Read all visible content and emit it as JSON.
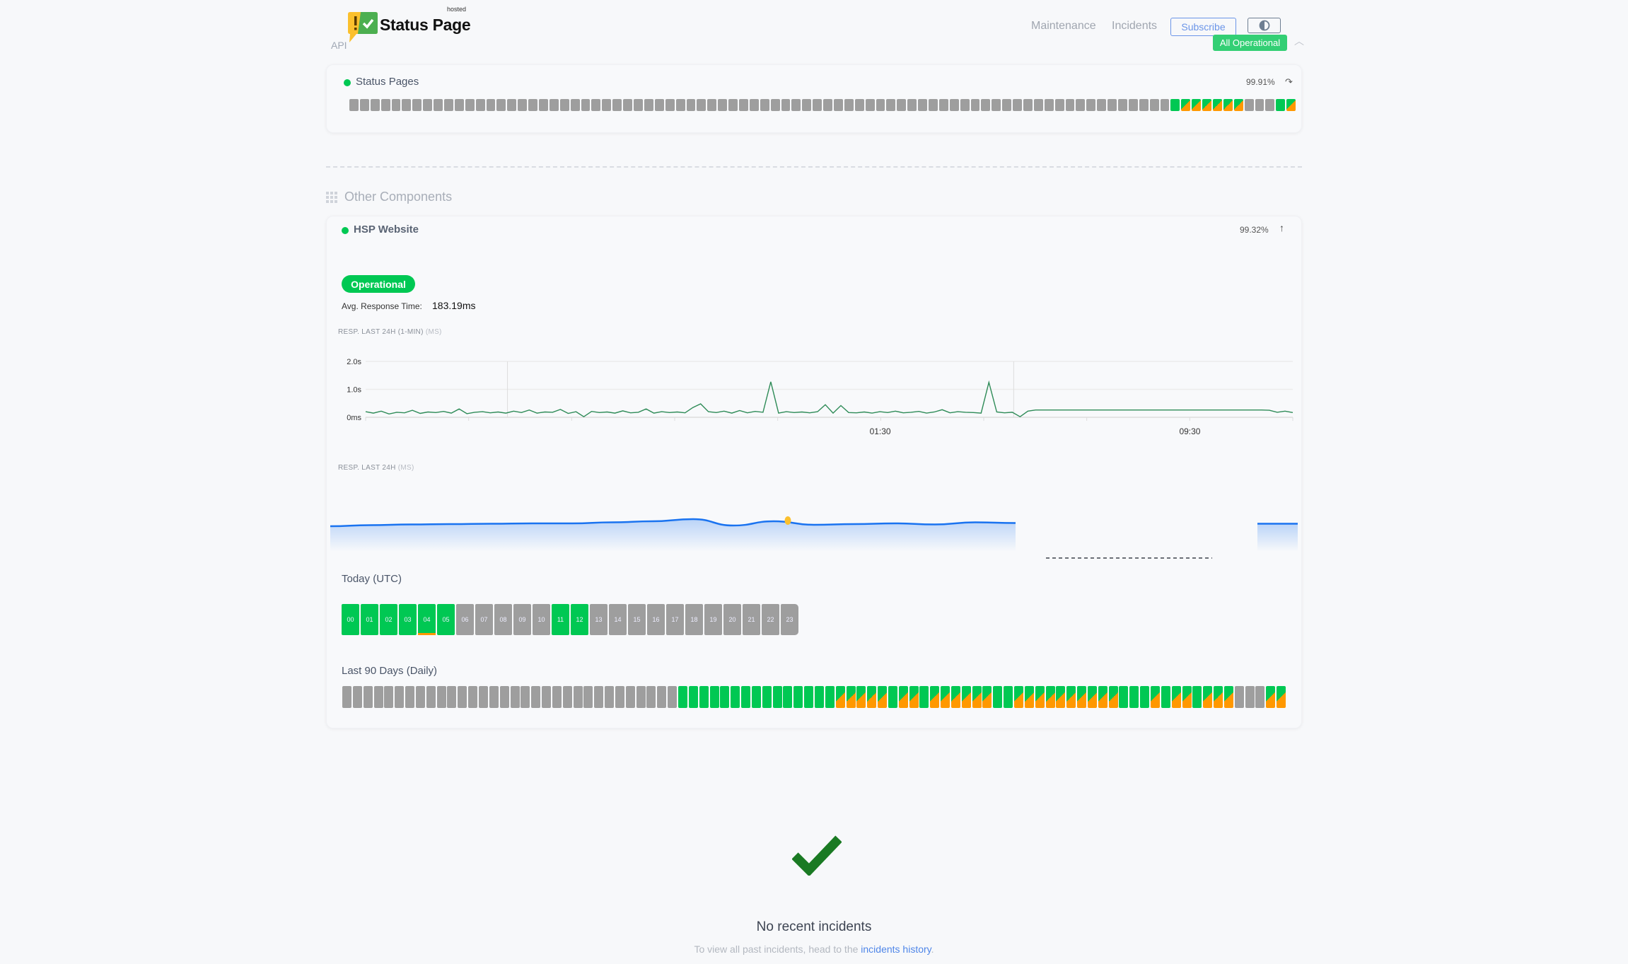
{
  "header": {
    "logo_text": "Status Page",
    "logo_sup": "hosted",
    "section_label": "API",
    "nav": [
      "Maintenance",
      "Incidents"
    ],
    "subscribe_label": "Subscribe",
    "theme_icon": "half-circle-contrast-icon",
    "overall_status": "All Operational",
    "collapse_icon": "chevron-up-icon"
  },
  "colors": {
    "operational": "#00c853",
    "degraded": "#ff9800",
    "no_data": "#9e9e9e",
    "accent": "#6b95e8",
    "response_line": "#2e8b57",
    "daily_line": "#1a73f0"
  },
  "status_pages": {
    "name": "Status Pages",
    "uptime": "99.91%",
    "bars": "xxxxxxxxxxxxxxxxxxxxxxxxxxxxxxxxxxxxxxxxxxxxxxxxxxxxxxxxxxxxxxxxxxxxxxxxxxxxxxgmmmmmmxxxgm"
  },
  "other_components": {
    "title": "Other Components",
    "component": {
      "name": "HSP Website",
      "uptime": "99.32%",
      "status": "Operational",
      "avg_label": "Avg. Response Time:",
      "avg_value": "183.19ms",
      "chart1_label": "RESP. LAST 24H (1-MIN)",
      "chart1_unit": "(MS)",
      "chart2_label": "RESP. LAST 24H",
      "chart2_unit": "(MS)",
      "today_title": "Today (UTC)",
      "today_hours": [
        {
          "h": "00",
          "s": "g"
        },
        {
          "h": "01",
          "s": "g"
        },
        {
          "h": "02",
          "s": "g"
        },
        {
          "h": "03",
          "s": "g"
        },
        {
          "h": "04",
          "s": "g",
          "incident": true
        },
        {
          "h": "05",
          "s": "g"
        },
        {
          "h": "06",
          "s": "x"
        },
        {
          "h": "07",
          "s": "x"
        },
        {
          "h": "08",
          "s": "x"
        },
        {
          "h": "09",
          "s": "x"
        },
        {
          "h": "10",
          "s": "x"
        },
        {
          "h": "11",
          "s": "g"
        },
        {
          "h": "12",
          "s": "g"
        },
        {
          "h": "13",
          "s": "x"
        },
        {
          "h": "14",
          "s": "x"
        },
        {
          "h": "15",
          "s": "x"
        },
        {
          "h": "16",
          "s": "x"
        },
        {
          "h": "17",
          "s": "x"
        },
        {
          "h": "18",
          "s": "x"
        },
        {
          "h": "19",
          "s": "x"
        },
        {
          "h": "20",
          "s": "x"
        },
        {
          "h": "21",
          "s": "x"
        },
        {
          "h": "22",
          "s": "x"
        },
        {
          "h": "23",
          "s": "x"
        }
      ],
      "days_title": "Last 90 Days (Daily)",
      "days": "xxxxxxxxxxxxxxxxxxxxxxxxxxxxxxxxgggggggggggggggmmmmmgmmgmmmmmmggmmmmmmmmmmgggmgmmgmmmxxxmm"
    }
  },
  "chart_data": [
    {
      "type": "line",
      "title": "RESP. LAST 24H (1-MIN) (MS)",
      "ylim": [
        0,
        2.0
      ],
      "y_ticks": [
        "0ms",
        "1.0s",
        "2.0s"
      ],
      "x_ticks": [
        "01:30",
        "09:30"
      ],
      "grid": true,
      "values": [
        0.2,
        0.15,
        0.22,
        0.12,
        0.18,
        0.16,
        0.25,
        0.14,
        0.19,
        0.17,
        0.21,
        0.15,
        0.3,
        0.13,
        0.18,
        0.2,
        0.16,
        0.19,
        0.15,
        0.22,
        0.17,
        0.26,
        0.15,
        0.19,
        0.18,
        0.28,
        0.14,
        0.2,
        0.02,
        0.21,
        0.17,
        0.19,
        0.15,
        0.23,
        0.16,
        0.18,
        0.3,
        0.15,
        0.2,
        0.17,
        0.19,
        0.16,
        0.35,
        0.48,
        0.2,
        0.17,
        0.22,
        0.15,
        0.24,
        0.16,
        0.21,
        0.18,
        1.27,
        0.15,
        0.2,
        0.17,
        0.19,
        0.16,
        0.2,
        0.45,
        0.15,
        0.42,
        0.17,
        0.16,
        0.19,
        0.15,
        0.2,
        0.17,
        0.22,
        0.16,
        0.18,
        0.21,
        0.15,
        0.19,
        0.27,
        0.16,
        0.2,
        0.18,
        0.17,
        0.15,
        1.25,
        0.19,
        0.16,
        0.18,
        0.02,
        0.22,
        0.26,
        0.26,
        0.26,
        0.26,
        0.26,
        0.26,
        0.26,
        0.26,
        0.26,
        0.26,
        0.26,
        0.26,
        0.26,
        0.26,
        0.26,
        0.26,
        0.26,
        0.26,
        0.26,
        0.26,
        0.26,
        0.26,
        0.26,
        0.26,
        0.26,
        0.26,
        0.26,
        0.26,
        0.26,
        0.26,
        0.25,
        0.18,
        0.22,
        0.17
      ]
    },
    {
      "type": "area",
      "title": "RESP. LAST 24H (MS)",
      "values": [
        172,
        175,
        177,
        178,
        179,
        180,
        180,
        183,
        186,
        192,
        174,
        186,
        176,
        178,
        180,
        177,
        183,
        181,
        null,
        null,
        null,
        null,
        null,
        179,
        179
      ],
      "highlight_index": 11
    }
  ],
  "incidents": {
    "icon": "checkmark-icon",
    "title": "No recent incidents",
    "text": "To view all past incidents, head to the",
    "link": "incidents history",
    "suffix": "."
  }
}
